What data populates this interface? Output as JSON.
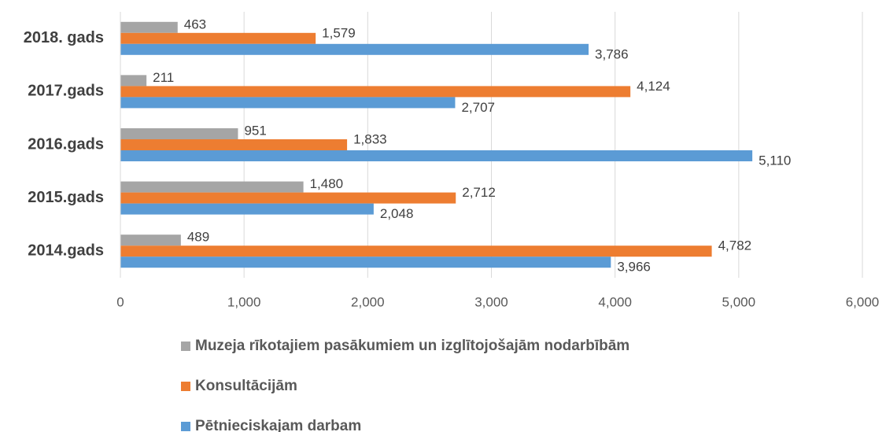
{
  "chart_data": {
    "type": "hbar",
    "categories": [
      "2018. gads",
      "2017.gads",
      "2016.gads",
      "2015.gads",
      "2014.gads"
    ],
    "series": [
      {
        "name": "Muzeja rīkotajiem pasākumiem un izglītojošajām nodarbībām",
        "color": "#a5a5a5",
        "values": [
          463,
          211,
          951,
          1480,
          489
        ],
        "value_labels": [
          "463",
          "211",
          "951",
          "1,480",
          "489"
        ]
      },
      {
        "name": "Konsultācijām",
        "color": "#ed7d31",
        "values": [
          1579,
          4124,
          1833,
          2712,
          4782
        ],
        "value_labels": [
          "1,579",
          "4,124",
          "1,833",
          "2,712",
          "4,782"
        ]
      },
      {
        "name": "Pētnieciskajam darbam",
        "color": "#5b9bd5",
        "values": [
          3786,
          2707,
          5110,
          2048,
          3966
        ],
        "value_labels": [
          "3,786",
          "2,707",
          "5,110",
          "2,048",
          "3,966"
        ]
      }
    ],
    "xlim": [
      0,
      6000
    ],
    "xticks": [
      0,
      {
        "value": 1000,
        "label": "1,000"
      },
      {
        "value": 2000,
        "label": "2,000"
      },
      {
        "value": 3000,
        "label": "3,000"
      },
      {
        "value": 4000,
        "label": "4,000"
      },
      {
        "value": 5000,
        "label": "5,000"
      },
      {
        "value": 6000,
        "label": "6,000"
      }
    ],
    "grid": true,
    "legend": "bottom"
  }
}
